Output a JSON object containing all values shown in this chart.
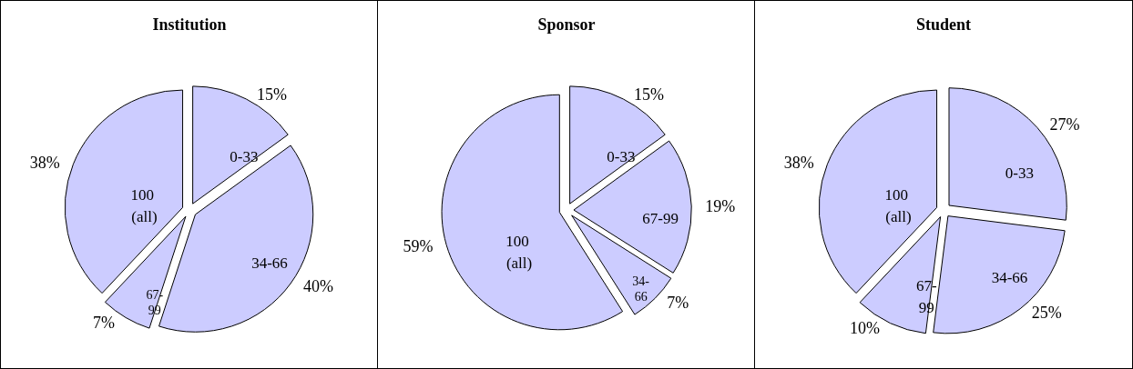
{
  "chart_data": [
    {
      "type": "pie",
      "title": "Institution",
      "categories": [
        "0-33",
        "34-66",
        "67-99",
        "100 (all)"
      ],
      "values": [
        15,
        40,
        7,
        38
      ],
      "value_labels": [
        "15%",
        "40%",
        "7%",
        "38%"
      ],
      "colors": [
        "#ccccff",
        "#ccccff",
        "#ccccff",
        "#ccccff"
      ],
      "legend": false
    },
    {
      "type": "pie",
      "title": "Sponsor",
      "categories": [
        "0-33",
        "67-99",
        "34-66",
        "100 (all)"
      ],
      "values": [
        15,
        19,
        7,
        59
      ],
      "value_labels": [
        "15%",
        "19%",
        "7%",
        "59%"
      ],
      "colors": [
        "#ccccff",
        "#ccccff",
        "#ccccff",
        "#ccccff"
      ],
      "legend": false
    },
    {
      "type": "pie",
      "title": "Student",
      "categories": [
        "0-33",
        "34-66",
        "67-99",
        "100 (all)"
      ],
      "values": [
        27,
        25,
        10,
        38
      ],
      "value_labels": [
        "27%",
        "25%",
        "10%",
        "38%"
      ],
      "colors": [
        "#ccccff",
        "#ccccff",
        "#ccccff",
        "#ccccff"
      ],
      "legend": false
    }
  ]
}
